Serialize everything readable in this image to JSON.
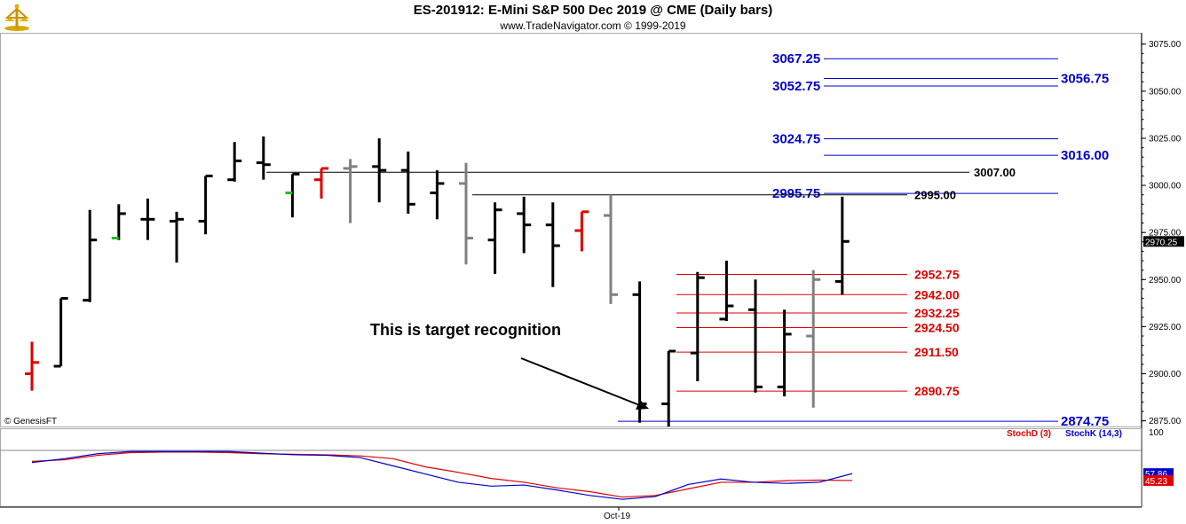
{
  "header": {
    "title": "ES-201912:  E-Mini S&P 500 Dec 2019 @ CME  (Daily bars)",
    "copyright": "www.TradeNavigator.com © 1999-2019"
  },
  "credit": "© GenesisFT",
  "annotation": "This is target recognition",
  "chart_data": [
    {
      "type": "ohlc",
      "price_axis": {
        "ticks": [
          "3075.00",
          "3050.00",
          "3025.00",
          "3000.00",
          "2975.00",
          "2950.00",
          "2925.00",
          "2900.00",
          "2875.00"
        ],
        "tick_values": [
          3075,
          3050,
          3025,
          3000,
          2975,
          2950,
          2925,
          2900,
          2875
        ],
        "ylim": [
          2872,
          3081
        ],
        "current_price": "2970.25",
        "current_value": 2970.25
      },
      "colors": {
        "up_down": "#000000",
        "red": "#e00000",
        "gray": "#808080",
        "green": "#22bb22",
        "blue": "#0000cc"
      },
      "bars": [
        {
          "o": 2900.0,
          "h": 2917.0,
          "l": 2891.0,
          "c": 2906.0,
          "color": "red"
        },
        {
          "o": 2904.0,
          "h": 2940.0,
          "l": 2904.0,
          "c": 2940.0,
          "color": "black"
        },
        {
          "o": 2939.0,
          "h": 2987.0,
          "l": 2938.0,
          "c": 2971.0,
          "color": "black"
        },
        {
          "o": 2972.0,
          "h": 2990.0,
          "l": 2971.0,
          "c": 2985.0,
          "color": "black",
          "open_tick_color": "green"
        },
        {
          "o": 2982.0,
          "h": 2993.0,
          "l": 2971.0,
          "c": 2982.0,
          "color": "black"
        },
        {
          "o": 2981.0,
          "h": 2986.0,
          "l": 2959.0,
          "c": 2982.0,
          "color": "black"
        },
        {
          "o": 2981.0,
          "h": 3005.0,
          "l": 2974.0,
          "c": 3005.0,
          "color": "black"
        },
        {
          "o": 3003.0,
          "h": 3023.0,
          "l": 3002.0,
          "c": 3013.0,
          "color": "black"
        },
        {
          "o": 3012.0,
          "h": 3026.0,
          "l": 3003.0,
          "c": 3011.0,
          "color": "black"
        },
        {
          "o": 2996.0,
          "h": 3006.0,
          "l": 2983.0,
          "c": 3006.0,
          "color": "black",
          "open_tick_color": "green"
        },
        {
          "o": 3003.0,
          "h": 3009.0,
          "l": 2993.0,
          "c": 3009.0,
          "color": "red"
        },
        {
          "o": 3009.0,
          "h": 3014.0,
          "l": 2980.0,
          "c": 3010.0,
          "color": "gray"
        },
        {
          "o": 3010.0,
          "h": 3025.0,
          "l": 2991.0,
          "c": 3008.0,
          "color": "black"
        },
        {
          "o": 3008.0,
          "h": 3018.0,
          "l": 2985.0,
          "c": 2990.0,
          "color": "black"
        },
        {
          "o": 2996.0,
          "h": 3008.0,
          "l": 2982.0,
          "c": 3001.0,
          "color": "black"
        },
        {
          "o": 3001.0,
          "h": 3012.0,
          "l": 2958.0,
          "c": 2972.0,
          "color": "gray"
        },
        {
          "o": 2971.0,
          "h": 2991.0,
          "l": 2953.0,
          "c": 2987.0,
          "color": "black"
        },
        {
          "o": 2985.0,
          "h": 2994.0,
          "l": 2964.0,
          "c": 2979.0,
          "color": "black"
        },
        {
          "o": 2979.0,
          "h": 2991.0,
          "l": 2946.0,
          "c": 2968.0,
          "color": "black"
        },
        {
          "o": 2976.0,
          "h": 2986.0,
          "l": 2965.0,
          "c": 2986.0,
          "color": "red"
        },
        {
          "o": 2984.0,
          "h": 2995.0,
          "l": 2937.0,
          "c": 2942.0,
          "color": "gray"
        },
        {
          "o": 2942.0,
          "h": 2949.0,
          "l": 2874.0,
          "c": 2884.0,
          "color": "black"
        },
        {
          "o": 2884.0,
          "h": 2912.0,
          "l": 2872.0,
          "c": 2912.0,
          "color": "black"
        },
        {
          "o": 2911.0,
          "h": 2954.0,
          "l": 2896.0,
          "c": 2951.0,
          "color": "black"
        },
        {
          "o": 2929.0,
          "h": 2960.0,
          "l": 2928.0,
          "c": 2936.0,
          "color": "black"
        },
        {
          "o": 2934.0,
          "h": 2950.0,
          "l": 2890.0,
          "c": 2893.0,
          "color": "black"
        },
        {
          "o": 2893.0,
          "h": 2934.0,
          "l": 2888.0,
          "c": 2921.0,
          "color": "black"
        },
        {
          "o": 2920.0,
          "h": 2955.0,
          "l": 2882.0,
          "c": 2950.0,
          "color": "gray"
        },
        {
          "o": 2949.0,
          "h": 2994.0,
          "l": 2942.0,
          "c": 2970.25,
          "color": "black"
        }
      ],
      "levels": [
        {
          "label": "3067.25",
          "value": 3067.25,
          "color": "blue",
          "side": "left"
        },
        {
          "label": "3056.75",
          "value": 3056.75,
          "color": "blue",
          "side": "right"
        },
        {
          "label": "3052.75",
          "value": 3052.75,
          "color": "blue",
          "side": "left"
        },
        {
          "label": "3024.75",
          "value": 3024.75,
          "color": "blue",
          "side": "left"
        },
        {
          "label": "3016.00",
          "value": 3016.0,
          "color": "blue",
          "side": "right"
        },
        {
          "label": "3007.00",
          "value": 3007.0,
          "color": "black",
          "side": "right"
        },
        {
          "label": "2995.75",
          "value": 2995.75,
          "color": "blue",
          "side": "left"
        },
        {
          "label": "2995.00",
          "value": 2995.0,
          "color": "black",
          "side": "right"
        },
        {
          "label": "2952.75",
          "value": 2952.75,
          "color": "red",
          "side": "right"
        },
        {
          "label": "2942.00",
          "value": 2942.0,
          "color": "red",
          "side": "right"
        },
        {
          "label": "2932.25",
          "value": 2932.25,
          "color": "red",
          "side": "right"
        },
        {
          "label": "2924.50",
          "value": 2924.5,
          "color": "red",
          "side": "right"
        },
        {
          "label": "2911.50",
          "value": 2911.5,
          "color": "red",
          "side": "right"
        },
        {
          "label": "2890.75",
          "value": 2890.75,
          "color": "red",
          "side": "right"
        },
        {
          "label": "2874.75",
          "value": 2874.75,
          "color": "blue",
          "side": "right"
        }
      ]
    },
    {
      "type": "line",
      "title": "",
      "legend": [
        "StochD (3)",
        "StochK (14,3)"
      ],
      "axis_label": "100",
      "x_label": "Oct-19",
      "ylim": [
        0,
        100
      ],
      "series": [
        {
          "name": "StochD (3)",
          "color": "#e00000",
          "values": [
            80,
            83,
            91,
            96,
            97,
            97,
            96,
            94,
            93,
            92,
            90,
            85,
            70,
            60,
            49,
            42,
            32,
            25,
            15,
            18,
            30,
            42,
            42,
            45,
            46,
            45.23
          ]
        },
        {
          "name": "StochK (14,3)",
          "color": "#0000cc",
          "values": [
            78,
            85,
            94,
            98,
            98,
            98,
            98,
            95,
            92,
            91,
            87,
            72,
            57,
            42,
            35,
            37,
            28,
            18,
            11,
            16,
            38,
            48,
            42,
            40,
            42,
            57.86
          ]
        }
      ],
      "last_values": {
        "d": "45.23",
        "k": "57.86"
      }
    }
  ]
}
